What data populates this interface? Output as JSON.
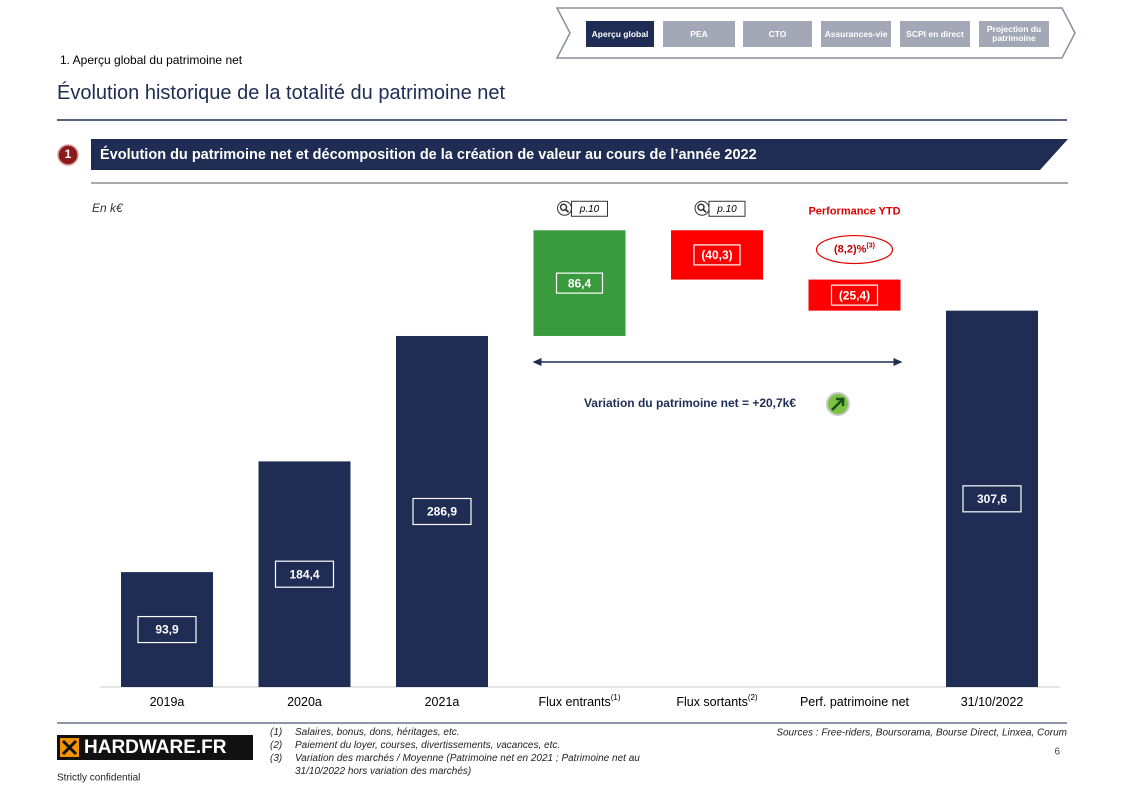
{
  "nav": {
    "tabs": [
      "Aperçu global",
      "PEA",
      "CTO",
      "Assurances-vie",
      "SCPI en direct",
      "Projection du patrimoine"
    ]
  },
  "header": {
    "breadcrumb": "1. Aperçu global du patrimoine net",
    "title": "Évolution historique de la totalité du patrimoine net"
  },
  "section": {
    "number": "1",
    "title": "Évolution du patrimoine net et décomposition de la création de valeur au cours de l’année 2022"
  },
  "chart_data": {
    "type": "waterfall",
    "unit_label": "En k€",
    "categories": [
      "2019a",
      "2020a",
      "2021a",
      "Flux entrants",
      "Flux sortants",
      "Perf. patrimoine net",
      "31/10/2022"
    ],
    "category_notes": [
      null,
      null,
      null,
      "(1)",
      "(2)",
      null,
      null
    ],
    "values": [
      93.9,
      184.4,
      286.9,
      86.4,
      -40.3,
      -25.4,
      307.6
    ],
    "value_labels": [
      "93,9",
      "184,4",
      "286,9",
      "86,4",
      "(40,3)",
      "(25,4)",
      "307,6"
    ],
    "measure": [
      "absolute",
      "absolute",
      "absolute",
      "relative",
      "relative",
      "relative",
      "absolute"
    ],
    "colors": {
      "total": "#1f2d54",
      "increase": "#3a9a3e",
      "decrease": "#ff0000"
    },
    "page_refs": [
      null,
      null,
      null,
      "p.10",
      "p.10",
      null,
      null
    ],
    "performance": {
      "title": "Performance YTD",
      "value": "(8,2)%",
      "note": "(3)"
    },
    "variation_label": "Variation du patrimoine net = +20,7k€"
  },
  "footer": {
    "logo": "HARDWARE.FR",
    "notes": [
      {
        "number": "(1)",
        "text": "Salaires, bonus, dons, héritages, etc."
      },
      {
        "number": "(2)",
        "text": "Paiement du loyer, courses, divertissements, vacances, etc."
      },
      {
        "number": "(3)",
        "text": "Variation des marchés / Moyenne (Patrimoine net en 2021 ; Patrimoine net au 31/10/2022 hors variation des marchés)"
      }
    ],
    "sources": "Sources : Free-riders, Boursorama, Bourse Direct, Linxea, Corum",
    "page": 6,
    "confidentiality": "Strictly confidential"
  }
}
